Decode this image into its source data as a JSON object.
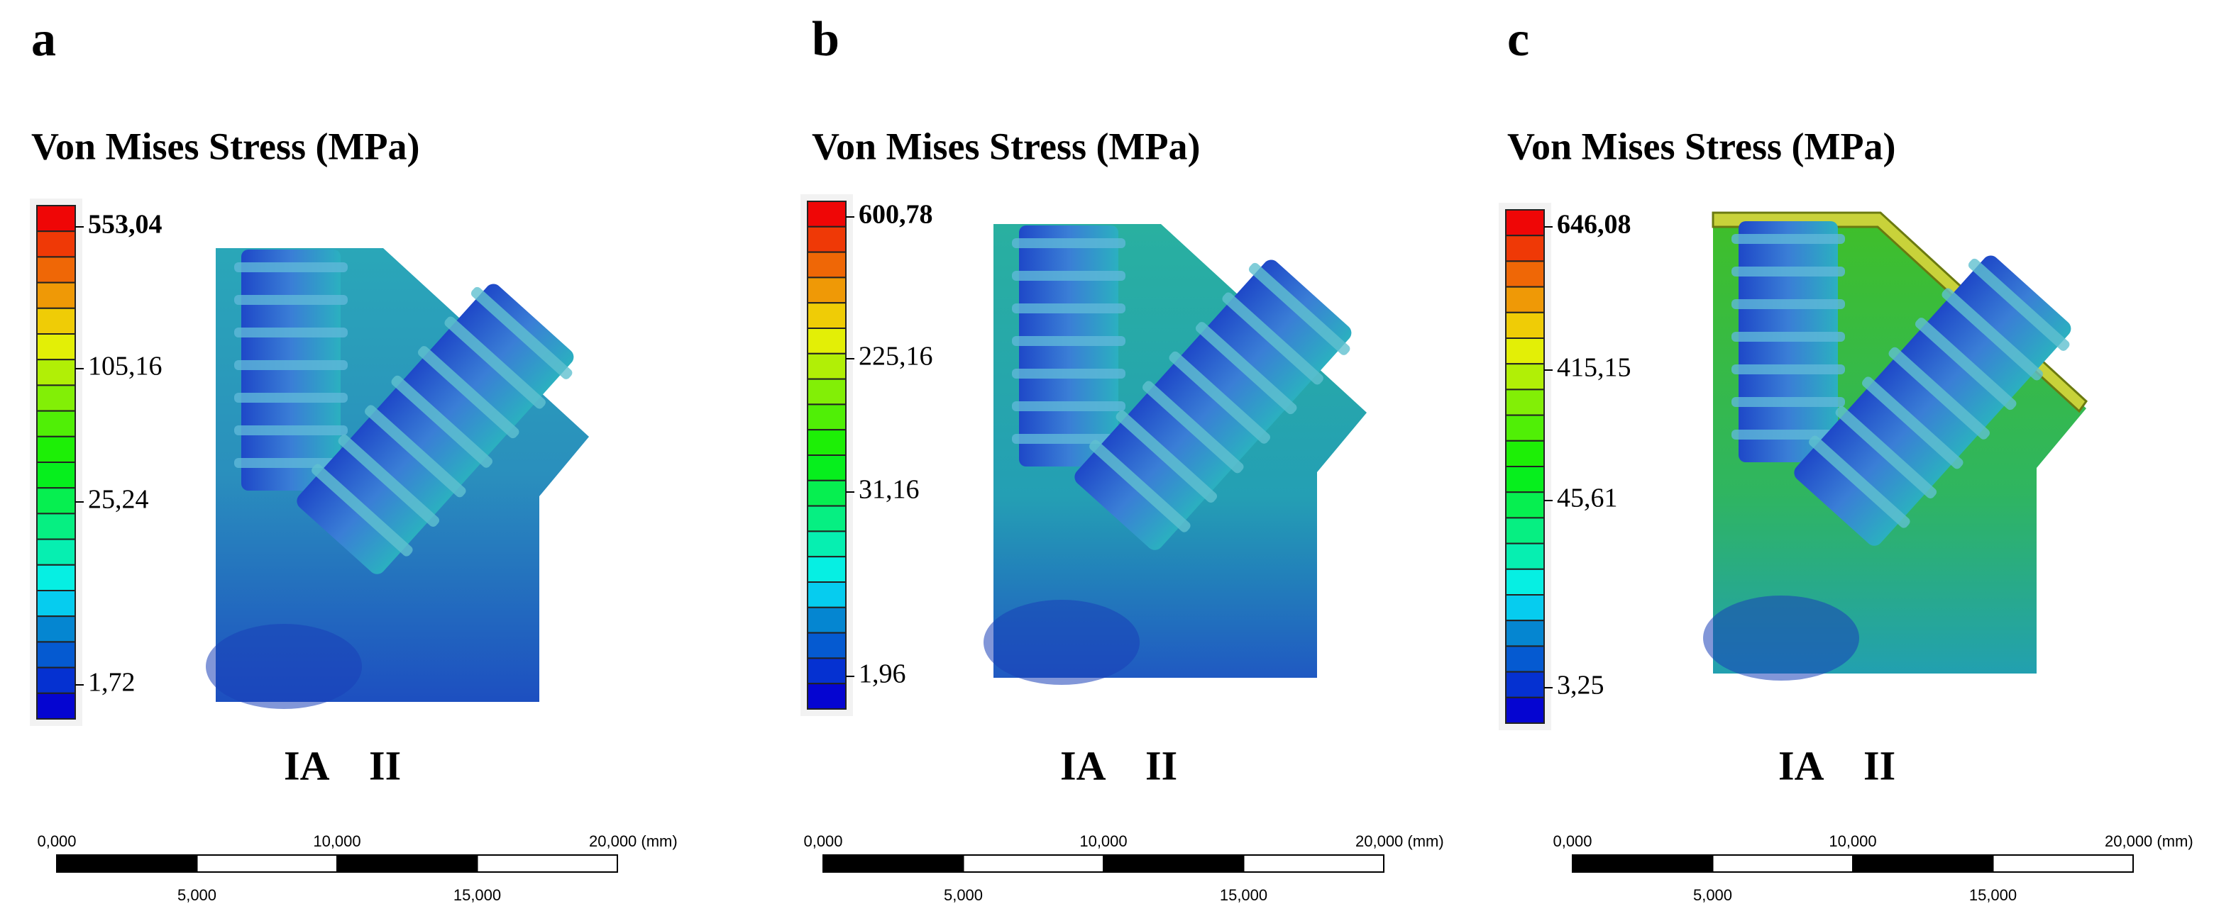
{
  "panels": [
    {
      "letter": "a",
      "title": "Von Mises Stress (MPa)",
      "legend_labels": [
        "553,04",
        "105,16",
        "25,24",
        "1,72"
      ],
      "implant_labels": [
        "IA",
        "II"
      ],
      "scale_bar": {
        "top_labels": [
          "0,000",
          "10,000",
          "20,000 (mm)"
        ],
        "bottom_labels": [
          "5,000",
          "15,000"
        ]
      }
    },
    {
      "letter": "b",
      "title": "Von Mises Stress (MPa)",
      "legend_labels": [
        "600,78",
        "225,16",
        "31,16",
        "1,96"
      ],
      "implant_labels": [
        "IA",
        "II"
      ],
      "scale_bar": {
        "top_labels": [
          "0,000",
          "10,000",
          "20,000 (mm)"
        ],
        "bottom_labels": [
          "5,000",
          "15,000"
        ]
      }
    },
    {
      "letter": "c",
      "title": "Von Mises Stress (MPa)",
      "legend_labels": [
        "646,08",
        "415,15",
        "45,61",
        "3,25"
      ],
      "implant_labels": [
        "IA",
        "II"
      ],
      "scale_bar": {
        "top_labels": [
          "0,000",
          "10,000",
          "20,000 (mm)"
        ],
        "bottom_labels": [
          "5,000",
          "15,000"
        ]
      }
    }
  ]
}
